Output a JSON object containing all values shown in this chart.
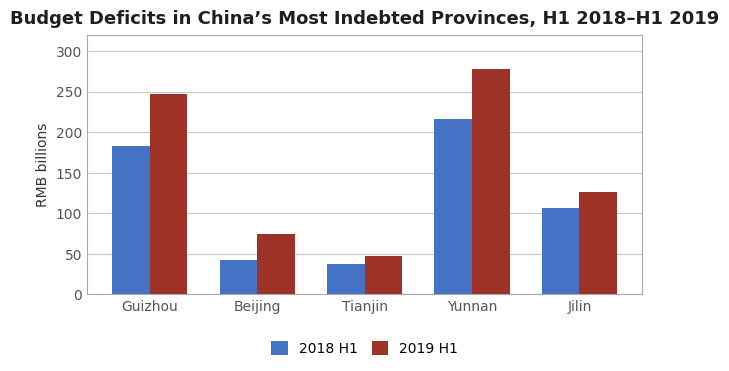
{
  "title": "Budget Deficits in China’s Most Indebted Provinces, H1 2018–H1 2019",
  "categories": [
    "Guizhou",
    "Beijing",
    "Tianjin",
    "Yunnan",
    "Jilin"
  ],
  "values_2018": [
    183,
    42,
    37,
    216,
    107
  ],
  "values_2019": [
    247,
    74,
    47,
    278,
    126
  ],
  "color_2018": "#4472C4",
  "color_2019": "#9E3226",
  "ylabel": "RMB billions",
  "legend_2018": "2018 H1",
  "legend_2019": "2019 H1",
  "ylim": [
    0,
    320
  ],
  "yticks": [
    0,
    50,
    100,
    150,
    200,
    250,
    300
  ],
  "bar_width": 0.35,
  "plot_bg_color": "#FFFFFF",
  "fig_bg_color": "#FFFFFF",
  "grid_color": "#C8C8C8",
  "title_fontsize": 13,
  "axis_fontsize": 10,
  "legend_fontsize": 10,
  "tick_fontsize": 10,
  "spine_color": "#AAAAAA"
}
